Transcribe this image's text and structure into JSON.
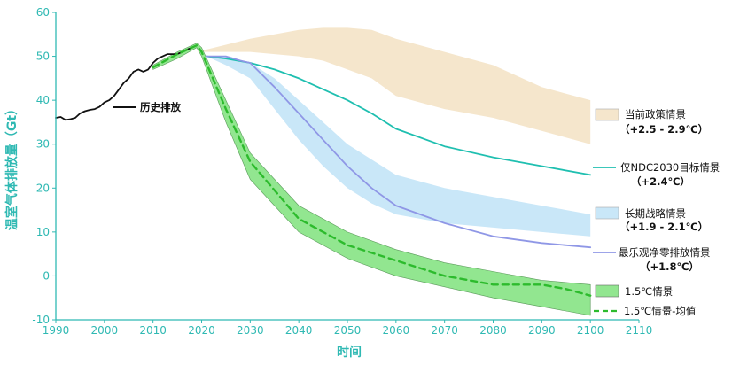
{
  "chart_data": {
    "type": "line",
    "xlabel": "时间",
    "ylabel": "温室气体排放量（Gt）",
    "xlim": [
      1990,
      2110
    ],
    "ylim": [
      -10,
      60
    ],
    "x_ticks": [
      "1990",
      "2000",
      "2010",
      "2020",
      "2030",
      "2040",
      "2050",
      "2060",
      "2070",
      "2080",
      "2090",
      "2100",
      "2110"
    ],
    "y_ticks": [
      "-10",
      "0",
      "10",
      "20",
      "30",
      "40",
      "50",
      "60"
    ],
    "grid": false,
    "colors": {
      "axis": "#2fb9b3",
      "historical": "#111111",
      "current_policy": "#f5e6cc",
      "ndc": "#1fbfb0",
      "long_term": "#c9e7f8",
      "optimistic": "#8f97e6",
      "band_15": "#92e690",
      "mean_15": "#2dbb2d"
    },
    "annotations": [
      {
        "id": "historical",
        "text": "历史排放"
      },
      {
        "id": "current_policy",
        "text": "当前政策情景",
        "sub": "（+2.5 - 2.9℃）"
      },
      {
        "id": "ndc",
        "text": "仅NDC2030目标情景",
        "sub": "（+2.4℃）"
      },
      {
        "id": "long_term",
        "text": "长期战略情景",
        "sub": "（+1.9 - 2.1℃）"
      },
      {
        "id": "optimistic",
        "text": "最乐观净零排放情景",
        "sub": "（+1.8℃）"
      },
      {
        "id": "band_15",
        "text": "1.5℃情景"
      },
      {
        "id": "mean_15",
        "text": "1.5℃情景-均值"
      }
    ],
    "series": [
      {
        "id": "historical",
        "type": "line",
        "x": [
          1990,
          1991,
          1992,
          1993,
          1994,
          1995,
          1996,
          1997,
          1998,
          1999,
          2000,
          2001,
          2002,
          2003,
          2004,
          2005,
          2006,
          2007,
          2008,
          2009,
          2010,
          2011,
          2012,
          2013,
          2014,
          2015,
          2016,
          2017,
          2018,
          2019
        ],
        "y": [
          36.0,
          36.2,
          35.5,
          35.7,
          36.0,
          37.0,
          37.5,
          37.8,
          38.0,
          38.5,
          39.5,
          40.0,
          41.0,
          42.5,
          44.0,
          45.0,
          46.5,
          47.0,
          46.5,
          47.0,
          48.5,
          49.5,
          50.0,
          50.5,
          50.5,
          50.5,
          51.0,
          51.5,
          52.0,
          52.5
        ]
      },
      {
        "id": "current_policy",
        "type": "band",
        "x": [
          2019,
          2030,
          2040,
          2045,
          2050,
          2055,
          2060,
          2070,
          2080,
          2090,
          2100
        ],
        "upper": [
          51,
          54,
          56,
          56.5,
          56.5,
          56,
          54,
          51,
          48,
          43,
          40
        ],
        "lower": [
          51,
          51,
          50,
          49,
          47,
          45,
          41,
          38,
          36,
          33,
          30
        ]
      },
      {
        "id": "ndc",
        "type": "line",
        "x": [
          2021,
          2025,
          2030,
          2035,
          2040,
          2045,
          2050,
          2055,
          2060,
          2070,
          2080,
          2090,
          2100
        ],
        "y": [
          50,
          49.5,
          48.5,
          47,
          45,
          42.5,
          40,
          37,
          33.5,
          29.5,
          27,
          25,
          23
        ]
      },
      {
        "id": "long_term",
        "type": "band",
        "x": [
          2021,
          2025,
          2030,
          2035,
          2040,
          2045,
          2050,
          2055,
          2060,
          2070,
          2080,
          2090,
          2100
        ],
        "upper": [
          50,
          50,
          48.5,
          45,
          40,
          35,
          30,
          26.5,
          23,
          20,
          18,
          16,
          14
        ],
        "lower": [
          50,
          48,
          45,
          38,
          31,
          25,
          20,
          16.5,
          14,
          12,
          11,
          10,
          9
        ]
      },
      {
        "id": "optimistic",
        "type": "line",
        "x": [
          2021,
          2025,
          2028,
          2030,
          2035,
          2040,
          2045,
          2050,
          2055,
          2060,
          2070,
          2080,
          2090,
          2100
        ],
        "y": [
          50,
          50,
          49,
          48.5,
          43,
          37,
          31,
          25,
          20,
          16,
          12,
          9,
          7.5,
          6.5
        ]
      },
      {
        "id": "band_15",
        "type": "band",
        "x": [
          2010,
          2015,
          2019,
          2020,
          2025,
          2030,
          2040,
          2050,
          2060,
          2070,
          2080,
          2090,
          2100
        ],
        "upper": [
          48,
          51,
          53,
          52,
          40,
          28,
          16,
          10,
          6,
          3,
          1,
          -1,
          -2
        ],
        "lower": [
          47,
          49.5,
          52,
          50,
          35,
          22,
          10,
          4,
          0,
          -2.5,
          -5,
          -7,
          -9
        ]
      },
      {
        "id": "mean_15",
        "type": "dashed",
        "x": [
          2010,
          2015,
          2019,
          2020,
          2025,
          2030,
          2040,
          2050,
          2060,
          2070,
          2080,
          2090,
          2095,
          2100
        ],
        "y": [
          47.5,
          50.5,
          52.5,
          51,
          38,
          26,
          13,
          7,
          3.5,
          0,
          -2,
          -2,
          -3,
          -4.5
        ]
      }
    ]
  }
}
